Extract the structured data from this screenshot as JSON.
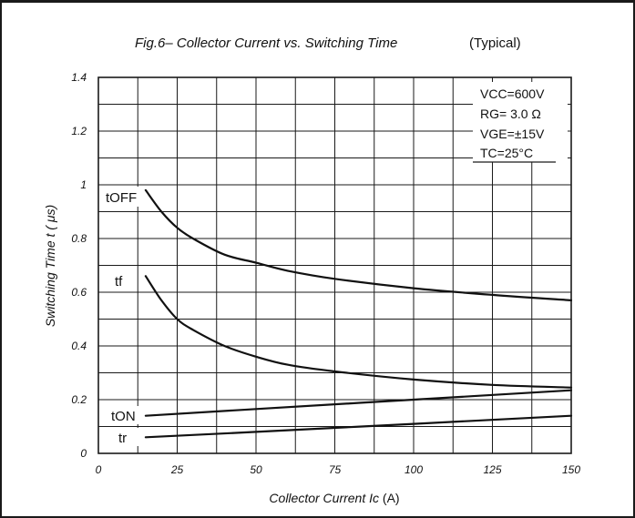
{
  "chart_data": {
    "type": "line",
    "title": {
      "prefix": "Fig.6– Collector Current vs. Switching Time",
      "suffix": "(Typical)"
    },
    "xlabel": {
      "name": "Collector Current Ic",
      "unit": "(A)"
    },
    "ylabel": {
      "name": "Switching Time t",
      "unit": "( μs)"
    },
    "xlim": [
      0,
      150
    ],
    "ylim": [
      0,
      1.4
    ],
    "x_ticks": [
      "0",
      "25",
      "50",
      "75",
      "100",
      "125",
      "150"
    ],
    "y_ticks": [
      "0",
      "0.2",
      "0.4",
      "0.6",
      "0.8",
      "1",
      "1.2",
      "1.4"
    ],
    "grid": true,
    "conditions": [
      "VCC=600V",
      "RG= 3.0 Ω",
      "VGE=±15V",
      "TC=25°C"
    ],
    "colors": {
      "line": "#111111",
      "grid": "#1a1a1a"
    },
    "series": [
      {
        "name": "tOFF",
        "x": [
          15,
          20,
          25,
          30,
          40,
          50,
          60,
          75,
          100,
          125,
          150
        ],
        "y": [
          0.98,
          0.9,
          0.84,
          0.8,
          0.74,
          0.71,
          0.68,
          0.65,
          0.615,
          0.59,
          0.57
        ]
      },
      {
        "name": "tf",
        "x": [
          15,
          20,
          25,
          30,
          40,
          50,
          60,
          75,
          100,
          125,
          150
        ],
        "y": [
          0.66,
          0.57,
          0.5,
          0.46,
          0.4,
          0.36,
          0.33,
          0.305,
          0.275,
          0.255,
          0.245
        ]
      },
      {
        "name": "tON",
        "x": [
          15,
          50,
          100,
          150
        ],
        "y": [
          0.14,
          0.165,
          0.2,
          0.235
        ]
      },
      {
        "name": "tr",
        "x": [
          15,
          50,
          100,
          150
        ],
        "y": [
          0.06,
          0.08,
          0.11,
          0.14
        ]
      }
    ]
  }
}
